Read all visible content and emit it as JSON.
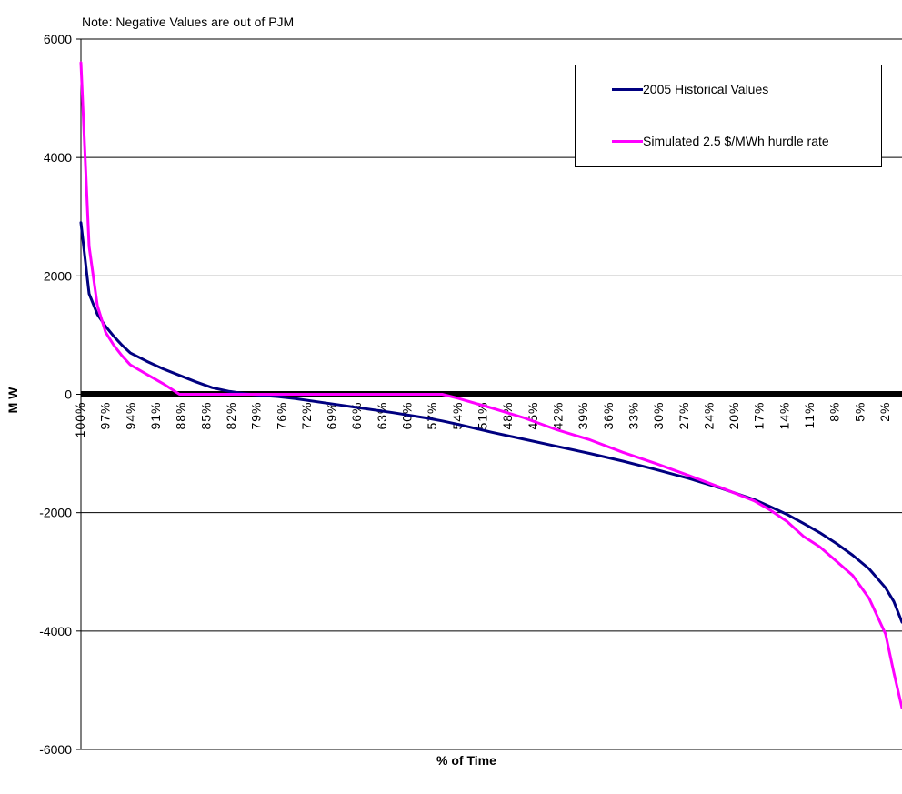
{
  "note": "Note: Negative Values are out of PJM",
  "chart_data": {
    "type": "line",
    "title": "",
    "xlabel": "% of Time",
    "ylabel": "M W",
    "ylim": [
      -6000,
      6000
    ],
    "yticks": [
      "6000",
      "4000",
      "2000",
      "0",
      "-2000",
      "-4000",
      "-6000"
    ],
    "x_tick_labels": [
      "100%",
      "97%",
      "94%",
      "91%",
      "88%",
      "85%",
      "82%",
      "79%",
      "76%",
      "72%",
      "69%",
      "66%",
      "63%",
      "60%",
      "57%",
      "54%",
      "51%",
      "48%",
      "45%",
      "42%",
      "39%",
      "36%",
      "33%",
      "30%",
      "27%",
      "24%",
      "20%",
      "17%",
      "14%",
      "11%",
      "8%",
      "5%",
      "2%"
    ],
    "x": [
      100,
      99,
      98,
      97,
      96,
      95,
      94,
      92,
      90,
      88,
      86,
      84,
      82,
      80,
      78,
      76,
      74,
      70,
      66,
      62,
      58,
      56,
      54,
      50,
      46,
      42,
      38,
      34,
      30,
      26,
      22,
      18,
      16,
      14,
      12,
      10,
      8,
      6,
      4,
      2,
      1,
      0
    ],
    "grid": true,
    "legend_position": "top-right",
    "series": [
      {
        "name": "2005 Historical Values",
        "color": "#000080",
        "values": [
          2900,
          1700,
          1350,
          1150,
          980,
          830,
          700,
          560,
          430,
          320,
          210,
          110,
          50,
          10,
          -20,
          -40,
          -70,
          -150,
          -230,
          -310,
          -400,
          -450,
          -510,
          -640,
          -760,
          -880,
          -1000,
          -1130,
          -1270,
          -1420,
          -1590,
          -1780,
          -1900,
          -2030,
          -2180,
          -2340,
          -2520,
          -2720,
          -2950,
          -3270,
          -3500,
          -3850
        ]
      },
      {
        "name": "Simulated 2.5 $/MWh hurdle rate",
        "color": "#ff00ff",
        "values": [
          5600,
          2500,
          1500,
          1050,
          830,
          650,
          500,
          340,
          180,
          0,
          0,
          0,
          0,
          0,
          0,
          0,
          0,
          0,
          0,
          0,
          0,
          0,
          -70,
          -230,
          -400,
          -600,
          -770,
          -980,
          -1170,
          -1370,
          -1580,
          -1800,
          -1960,
          -2150,
          -2400,
          -2580,
          -2820,
          -3060,
          -3450,
          -4050,
          -4700,
          -5300
        ]
      }
    ]
  }
}
